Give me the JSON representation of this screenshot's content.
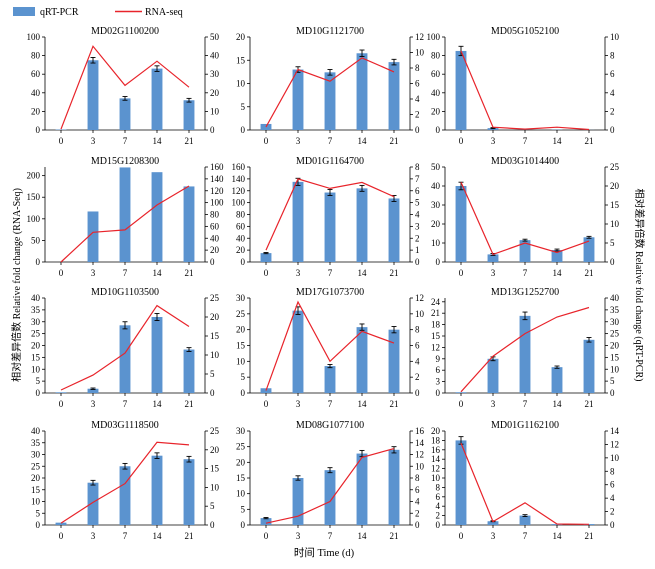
{
  "legend": {
    "bar_label": "qRT-PCR",
    "line_label": "RNA-seq"
  },
  "colors": {
    "bar": "#5b93cf",
    "bar_stroke": "#3a6fa6",
    "line": "#e8242b",
    "axis": "#000000"
  },
  "left_axis_label": "相对差异倍数 Relative fold change (RNA-Seq)",
  "right_axis_label": "相对差异倍数 Relative fold change (qRT-PCR)",
  "x_axis_label": "时间 Time (d)",
  "chart_data": [
    {
      "type": "bar",
      "title": "MD02G1100200",
      "categories": [
        "0",
        "3",
        "7",
        "14",
        "21"
      ],
      "series": [
        {
          "name": "qRT-PCR",
          "values": [
            0.5,
            75,
            34,
            66,
            32
          ],
          "errors": [
            0,
            3,
            2,
            3,
            2
          ]
        },
        {
          "name": "RNA-seq",
          "values": [
            0.5,
            45,
            24,
            37,
            23
          ]
        }
      ],
      "ylim": [
        0,
        100
      ],
      "yticks": [
        0,
        20,
        40,
        60,
        80,
        100
      ],
      "y2lim": [
        0,
        50
      ],
      "y2ticks": [
        0,
        10,
        20,
        30,
        40,
        50
      ]
    },
    {
      "type": "bar",
      "title": "MD10G1121700",
      "categories": [
        "0",
        "3",
        "7",
        "14",
        "21"
      ],
      "series": [
        {
          "name": "qRT-PCR",
          "values": [
            1.3,
            13,
            12.4,
            16.5,
            14.6
          ],
          "errors": [
            0,
            0.6,
            0.6,
            0.7,
            0.6
          ]
        },
        {
          "name": "RNA-seq",
          "values": [
            0.4,
            7.8,
            6.3,
            9.3,
            7.5
          ]
        }
      ],
      "ylim": [
        0,
        20
      ],
      "yticks": [
        0,
        5,
        10,
        15,
        20
      ],
      "y2lim": [
        0,
        12
      ],
      "y2ticks": [
        0,
        2,
        4,
        6,
        8,
        10,
        12
      ]
    },
    {
      "type": "bar",
      "title": "MD05G1052100",
      "categories": [
        "0",
        "3",
        "7",
        "14",
        "21"
      ],
      "series": [
        {
          "name": "qRT-PCR",
          "values": [
            85,
            2,
            0.2,
            0.3,
            0.1
          ],
          "errors": [
            5,
            0.5,
            0,
            0,
            0
          ]
        },
        {
          "name": "RNA-seq",
          "values": [
            8.5,
            0.3,
            0.1,
            0.3,
            0.05
          ]
        }
      ],
      "ylim": [
        0,
        100
      ],
      "yticks": [
        0,
        20,
        40,
        60,
        80,
        100
      ],
      "y2lim": [
        0,
        10
      ],
      "y2ticks": [
        0,
        2,
        4,
        6,
        8,
        10
      ]
    },
    {
      "type": "bar",
      "title": "MD15G1208300",
      "categories": [
        "0",
        "3",
        "7",
        "14",
        "21"
      ],
      "series": [
        {
          "name": "qRT-PCR",
          "values": [
            0,
            117,
            219,
            208,
            175
          ],
          "errors": [
            0,
            0,
            0,
            0,
            0
          ]
        },
        {
          "name": "RNA-seq",
          "values": [
            0,
            50,
            54,
            96,
            128
          ]
        }
      ],
      "ylim": [
        0,
        220
      ],
      "yticks": [
        0,
        50,
        100,
        150,
        200
      ],
      "y2lim": [
        0,
        160
      ],
      "y2ticks": [
        0,
        20,
        40,
        60,
        80,
        100,
        120,
        140,
        160
      ]
    },
    {
      "type": "bar",
      "title": "MD01G1164700",
      "categories": [
        "0",
        "3",
        "7",
        "14",
        "21"
      ],
      "series": [
        {
          "name": "qRT-PCR",
          "values": [
            15,
            135,
            117,
            124,
            107
          ],
          "errors": [
            1,
            6,
            5,
            5,
            5
          ]
        },
        {
          "name": "RNA-seq",
          "values": [
            1,
            7,
            6.2,
            6.7,
            5.5
          ]
        }
      ],
      "ylim": [
        0,
        160
      ],
      "yticks": [
        0,
        20,
        40,
        60,
        80,
        100,
        120,
        140,
        160
      ],
      "y2lim": [
        0,
        8
      ],
      "y2ticks": [
        0,
        1,
        2,
        3,
        4,
        5,
        6,
        7,
        8
      ]
    },
    {
      "type": "bar",
      "title": "MD03G1014400",
      "categories": [
        "0",
        "3",
        "7",
        "14",
        "21"
      ],
      "series": [
        {
          "name": "qRT-PCR",
          "values": [
            40,
            4,
            11.5,
            6.3,
            13
          ],
          "errors": [
            2,
            0.5,
            0.5,
            0.5,
            0.5
          ]
        },
        {
          "name": "RNA-seq",
          "values": [
            21,
            2,
            5,
            2.5,
            5.5
          ]
        }
      ],
      "ylim": [
        0,
        50
      ],
      "yticks": [
        0,
        10,
        20,
        30,
        40,
        50
      ],
      "y2lim": [
        0,
        25
      ],
      "y2ticks": [
        0,
        5,
        10,
        15,
        20,
        25
      ]
    },
    {
      "type": "bar",
      "title": "MD10G1103500",
      "categories": [
        "0",
        "3",
        "7",
        "14",
        "21"
      ],
      "series": [
        {
          "name": "qRT-PCR",
          "values": [
            0.3,
            1.8,
            28.5,
            32,
            18.3
          ],
          "errors": [
            0,
            0.3,
            1.5,
            1.5,
            0.8
          ]
        },
        {
          "name": "RNA-seq",
          "values": [
            0.8,
            4.7,
            10.5,
            23,
            17.5
          ]
        }
      ],
      "ylim": [
        0,
        40
      ],
      "yticks": [
        0,
        5,
        10,
        15,
        20,
        25,
        30,
        35,
        40
      ],
      "y2lim": [
        0,
        25
      ],
      "y2ticks": [
        0,
        5,
        10,
        15,
        20,
        25
      ]
    },
    {
      "type": "bar",
      "title": "MD17G1073700",
      "categories": [
        "0",
        "3",
        "7",
        "14",
        "21"
      ],
      "series": [
        {
          "name": "qRT-PCR",
          "values": [
            1.5,
            26,
            8.5,
            20.8,
            20
          ],
          "errors": [
            0,
            1.2,
            0.5,
            1,
            1
          ]
        },
        {
          "name": "RNA-seq",
          "values": [
            0.3,
            11.5,
            4,
            7.8,
            6.3
          ]
        }
      ],
      "ylim": [
        0,
        30
      ],
      "yticks": [
        0,
        5,
        10,
        15,
        20,
        25,
        30
      ],
      "y2lim": [
        0,
        12
      ],
      "y2ticks": [
        0,
        2,
        4,
        6,
        8,
        10,
        12
      ]
    },
    {
      "type": "bar",
      "title": "MD13G1252700",
      "categories": [
        "0",
        "3",
        "7",
        "14",
        "21"
      ],
      "series": [
        {
          "name": "qRT-PCR",
          "values": [
            0.2,
            9,
            20.3,
            6.8,
            14
          ],
          "errors": [
            0,
            0.5,
            1,
            0.3,
            0.6
          ]
        },
        {
          "name": "RNA-seq",
          "values": [
            0.5,
            15.5,
            25,
            32,
            36
          ]
        }
      ],
      "ylim": [
        0,
        25
      ],
      "yticks": [
        0,
        3,
        6,
        9,
        12,
        15,
        18,
        21,
        24
      ],
      "y2lim": [
        0,
        40
      ],
      "y2ticks": [
        0,
        5,
        10,
        15,
        20,
        25,
        30,
        35,
        40
      ]
    },
    {
      "type": "bar",
      "title": "MD03G1118500",
      "categories": [
        "0",
        "3",
        "7",
        "14",
        "21"
      ],
      "series": [
        {
          "name": "qRT-PCR",
          "values": [
            1,
            18,
            25,
            29.5,
            28
          ],
          "errors": [
            0,
            1,
            1.2,
            1.2,
            1.2
          ]
        },
        {
          "name": "RNA-seq",
          "values": [
            0.5,
            6,
            11,
            22,
            21.3
          ]
        }
      ],
      "ylim": [
        0,
        40
      ],
      "yticks": [
        0,
        5,
        10,
        15,
        20,
        25,
        30,
        35,
        40
      ],
      "y2lim": [
        0,
        25
      ],
      "y2ticks": [
        0,
        5,
        10,
        15,
        20,
        25
      ]
    },
    {
      "type": "bar",
      "title": "MD08G1077100",
      "categories": [
        "0",
        "3",
        "7",
        "14",
        "21"
      ],
      "series": [
        {
          "name": "qRT-PCR",
          "values": [
            2.2,
            15,
            17.5,
            22.8,
            24
          ],
          "errors": [
            0.2,
            0.7,
            0.8,
            1,
            1
          ]
        },
        {
          "name": "RNA-seq",
          "values": [
            0.3,
            1.5,
            4,
            11.5,
            13
          ]
        }
      ],
      "ylim": [
        0,
        30
      ],
      "yticks": [
        0,
        5,
        10,
        15,
        20,
        25,
        30
      ],
      "y2lim": [
        0,
        16
      ],
      "y2ticks": [
        0,
        2,
        4,
        6,
        8,
        10,
        12,
        14,
        16
      ]
    },
    {
      "type": "bar",
      "title": "MD01G1162100",
      "categories": [
        "0",
        "3",
        "7",
        "14",
        "21"
      ],
      "series": [
        {
          "name": "qRT-PCR",
          "values": [
            18,
            0.8,
            2,
            0.2,
            0.2
          ],
          "errors": [
            0.8,
            0.1,
            0.2,
            0,
            0
          ]
        },
        {
          "name": "RNA-seq",
          "values": [
            12.2,
            0.5,
            3.3,
            0.15,
            0.1
          ]
        }
      ],
      "ylim": [
        0,
        20
      ],
      "yticks": [
        0,
        2,
        4,
        6,
        8,
        10,
        12,
        14,
        16,
        18,
        20
      ],
      "y2lim": [
        0,
        14
      ],
      "y2ticks": [
        0,
        2,
        4,
        6,
        8,
        10,
        12,
        14
      ]
    }
  ]
}
